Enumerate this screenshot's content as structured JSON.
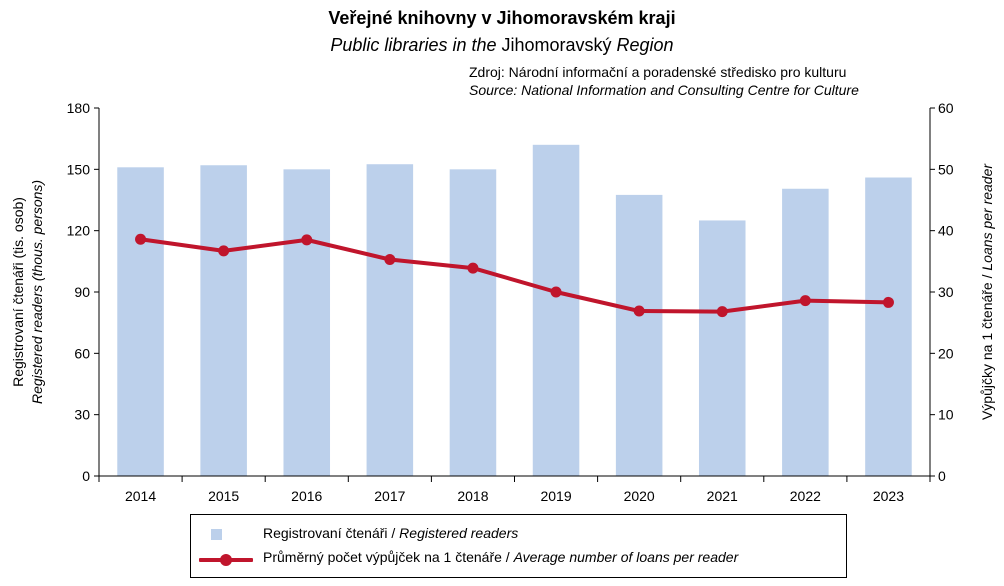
{
  "title": "Veřejné knihovny v Jihomoravském kraji",
  "subtitle_italic_1": "Public libraries in the",
  "subtitle_plain": " Jihomoravský ",
  "subtitle_italic_2": "Region",
  "source_cz": "Zdroj: Národní informační a poradenské středisko pro kulturu",
  "source_en": "Source: National Information and Consulting Centre for Culture",
  "colors": {
    "bars": "#bcd0eb",
    "line": "#c0152c",
    "axis": "#000000"
  },
  "chart_data": {
    "type": "bar",
    "categories": [
      "2014",
      "2015",
      "2016",
      "2017",
      "2018",
      "2019",
      "2020",
      "2021",
      "2022",
      "2023"
    ],
    "series": [
      {
        "name": "Registrovaní čtenáři / Registered readers",
        "type": "bar",
        "axis": "left",
        "values": [
          151,
          152,
          150,
          152.5,
          150,
          162,
          137.5,
          125,
          140.5,
          146
        ]
      },
      {
        "name": "Průměrný počet výpůjček na 1 čtenáře / Average number of loans per reader",
        "type": "line",
        "axis": "right",
        "values": [
          38.6,
          36.7,
          38.5,
          35.3,
          33.9,
          30.0,
          26.9,
          26.8,
          28.6,
          28.3
        ]
      }
    ],
    "y_left": {
      "min": 0,
      "max": 180,
      "ticks": [
        "0",
        "30",
        "60",
        "90",
        "120",
        "150",
        "180"
      ],
      "label_cz": "Registrovaní čtenáři (tis. osob)",
      "label_en": "Registered readers (thous. persons)"
    },
    "y_right": {
      "min": 0,
      "max": 60,
      "ticks": [
        "0",
        "10",
        "20",
        "30",
        "40",
        "50",
        "60"
      ],
      "label_cz": "Výpůjčky na 1 čtenáře / ",
      "label_en": "Loans per reader"
    },
    "grid": false
  },
  "legend": {
    "bars_cz": "Registrovaní  čtenáři / ",
    "bars_en": "Registered readers",
    "line_cz": "Průměrný počet výpůjček na 1 čtenáře / ",
    "line_en": "Average number of loans per reader"
  }
}
